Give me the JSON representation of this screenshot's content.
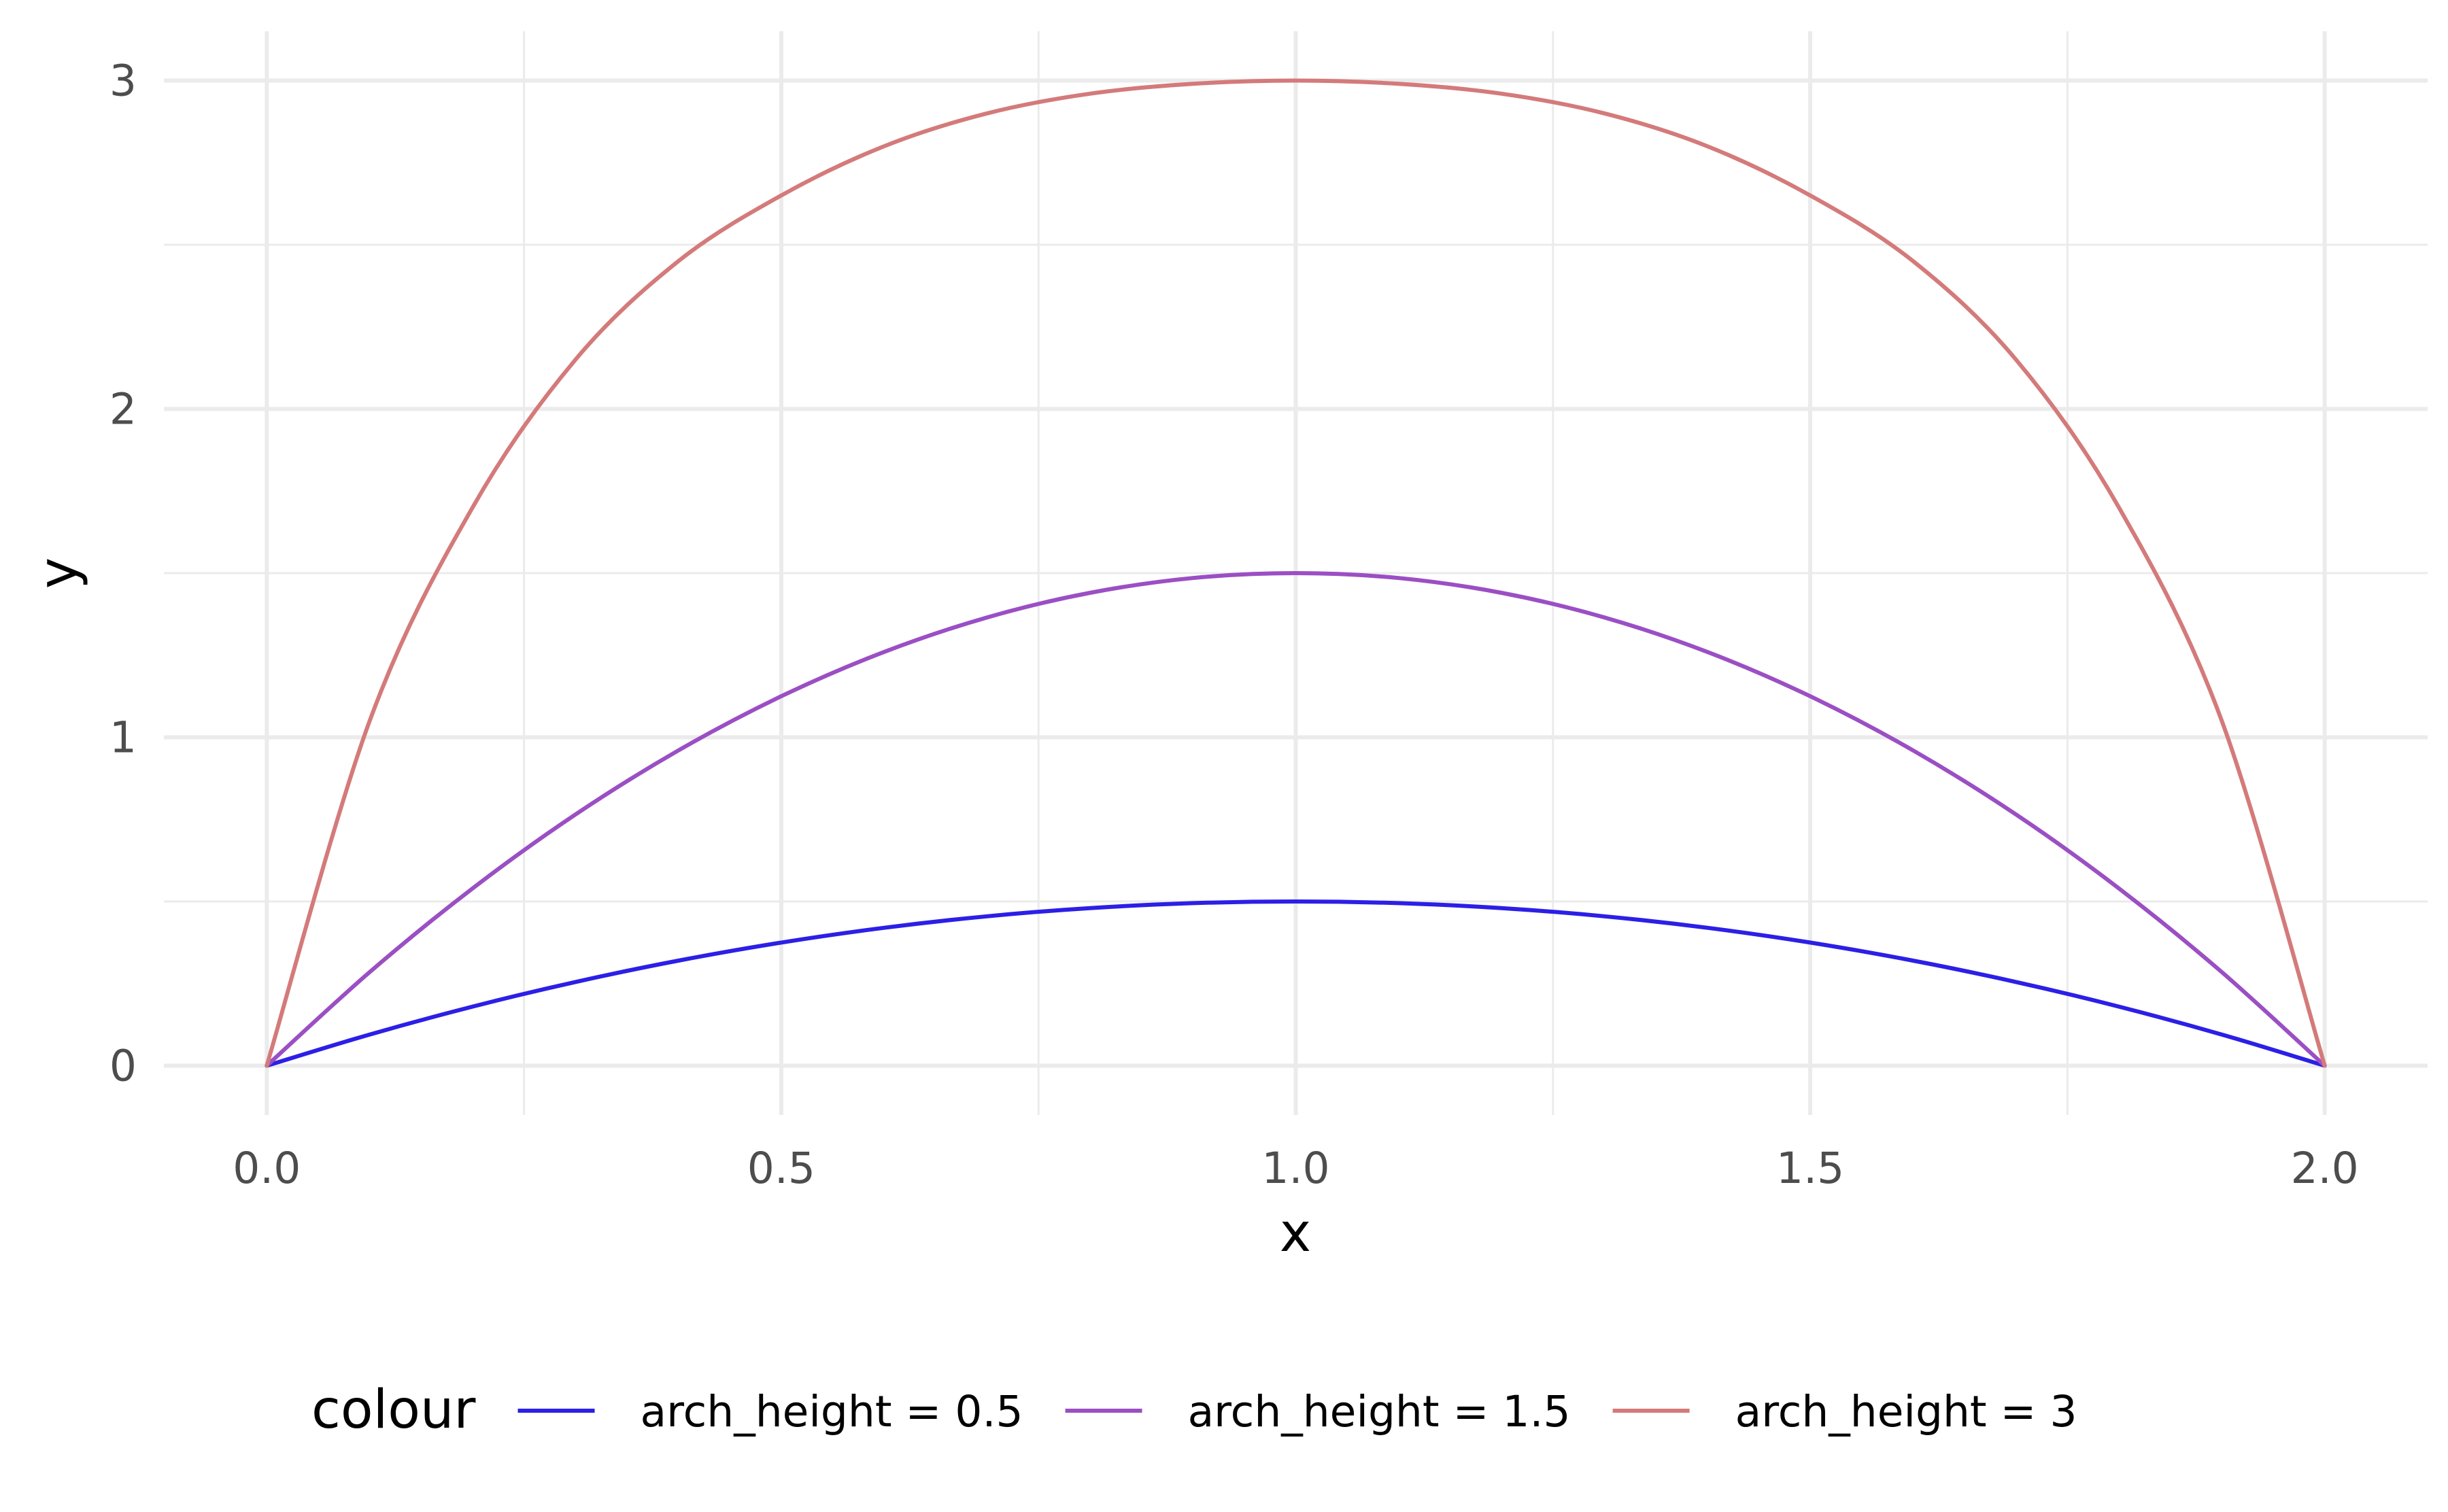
{
  "chart_data": {
    "type": "line",
    "xlabel": "x",
    "ylabel": "y",
    "xlim": [
      -0.1,
      2.1
    ],
    "ylim": [
      -0.15,
      3.15
    ],
    "x_ticks": [
      "0.0",
      "0.5",
      "1.0",
      "1.5",
      "2.0"
    ],
    "x_tick_values": [
      0,
      0.5,
      1.0,
      1.5,
      2.0
    ],
    "x_minor_values": [
      0.25,
      0.75,
      1.25,
      1.75
    ],
    "y_ticks": [
      "0",
      "1",
      "2",
      "3"
    ],
    "y_tick_values": [
      0,
      1,
      2,
      3
    ],
    "y_minor_values": [
      0.5,
      1.5,
      2.5
    ],
    "grid": true,
    "legend": {
      "title": "colour",
      "position": "bottom"
    },
    "series": [
      {
        "name": "arch_height = 0.5",
        "color": "#2c1fe6",
        "x": [
          0,
          0.1,
          0.2,
          0.3,
          0.4,
          0.5,
          0.6,
          0.7,
          0.8,
          0.9,
          1.0,
          1.1,
          1.2,
          1.3,
          1.4,
          1.5,
          1.6,
          1.7,
          1.8,
          1.9,
          2.0
        ],
        "y": [
          0,
          0.095,
          0.18,
          0.255,
          0.32,
          0.375,
          0.42,
          0.455,
          0.48,
          0.495,
          0.5,
          0.495,
          0.48,
          0.455,
          0.42,
          0.375,
          0.32,
          0.255,
          0.18,
          0.095,
          0
        ]
      },
      {
        "name": "arch_height = 1.5",
        "color": "#9b4fc4",
        "x": [
          0,
          0.1,
          0.2,
          0.3,
          0.4,
          0.5,
          0.6,
          0.7,
          0.8,
          0.9,
          1.0,
          1.1,
          1.2,
          1.3,
          1.4,
          1.5,
          1.6,
          1.7,
          1.8,
          1.9,
          2.0
        ],
        "y": [
          0,
          0.285,
          0.54,
          0.765,
          0.96,
          1.125,
          1.26,
          1.365,
          1.44,
          1.485,
          1.5,
          1.485,
          1.44,
          1.365,
          1.26,
          1.125,
          0.96,
          0.765,
          0.54,
          0.285,
          0
        ]
      },
      {
        "name": "arch_height = 3",
        "color": "#d47a7a",
        "x": [
          0,
          0.1,
          0.2,
          0.3,
          0.4,
          0.5,
          0.6,
          0.7,
          0.8,
          0.9,
          1.0,
          1.1,
          1.2,
          1.3,
          1.4,
          1.5,
          1.6,
          1.7,
          1.8,
          1.9,
          2.0
        ],
        "y": [
          0,
          1.05,
          1.7,
          2.15,
          2.45,
          2.65,
          2.8,
          2.9,
          2.96,
          2.99,
          3.0,
          2.99,
          2.96,
          2.9,
          2.8,
          2.65,
          2.45,
          2.15,
          1.7,
          1.05,
          0
        ]
      }
    ]
  }
}
